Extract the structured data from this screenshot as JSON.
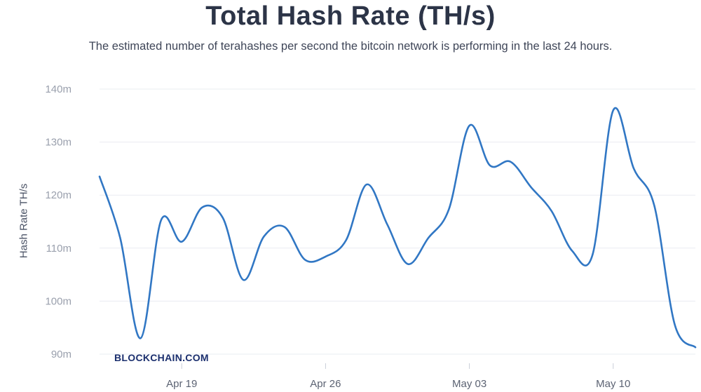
{
  "title": "Total Hash Rate (TH/s)",
  "subtitle": "The estimated number of terahashes per second the bitcoin network is performing in the last 24 hours.",
  "watermark": "BLOCKCHAIN.COM",
  "colors": {
    "line": "#3177c4",
    "grid": "#e9ecf1",
    "title": "#2c3447"
  },
  "chart_data": {
    "type": "line",
    "title": "Total Hash Rate (TH/s)",
    "ylabel": "Hash Rate TH/s",
    "xlabel": "",
    "ylim": [
      90,
      140
    ],
    "y_unit_suffix": "m",
    "yticks": [
      90,
      100,
      110,
      120,
      130,
      140
    ],
    "xticks": [
      {
        "label": "Apr 19",
        "x": "2021-04-19"
      },
      {
        "label": "Apr 26",
        "x": "2021-04-26"
      },
      {
        "label": "May 03",
        "x": "2021-05-03"
      },
      {
        "label": "May 10",
        "x": "2021-05-10"
      }
    ],
    "xlim": [
      "2021-04-15",
      "2021-05-14"
    ],
    "grid": true,
    "series": [
      {
        "x": [
          "2021-04-15",
          "2021-04-16",
          "2021-04-17",
          "2021-04-18",
          "2021-04-19",
          "2021-04-20",
          "2021-04-21",
          "2021-04-22",
          "2021-04-23",
          "2021-04-24",
          "2021-04-25",
          "2021-04-26",
          "2021-04-27",
          "2021-04-28",
          "2021-04-29",
          "2021-04-30",
          "2021-05-01",
          "2021-05-02",
          "2021-05-03",
          "2021-05-04",
          "2021-05-05",
          "2021-05-06",
          "2021-05-07",
          "2021-05-08",
          "2021-05-09",
          "2021-05-10",
          "2021-05-11",
          "2021-05-12",
          "2021-05-13",
          "2021-05-14"
        ],
        "y": [
          123.5,
          112.0,
          93.0,
          115.3,
          111.2,
          117.7,
          115.7,
          104.0,
          112.2,
          114.0,
          107.8,
          108.4,
          111.5,
          122.0,
          114.5,
          107.0,
          111.9,
          117.3,
          133.1,
          125.6,
          126.3,
          121.5,
          117.0,
          109.5,
          108.8,
          136.0,
          125.0,
          118.0,
          95.5,
          91.3
        ]
      }
    ]
  }
}
